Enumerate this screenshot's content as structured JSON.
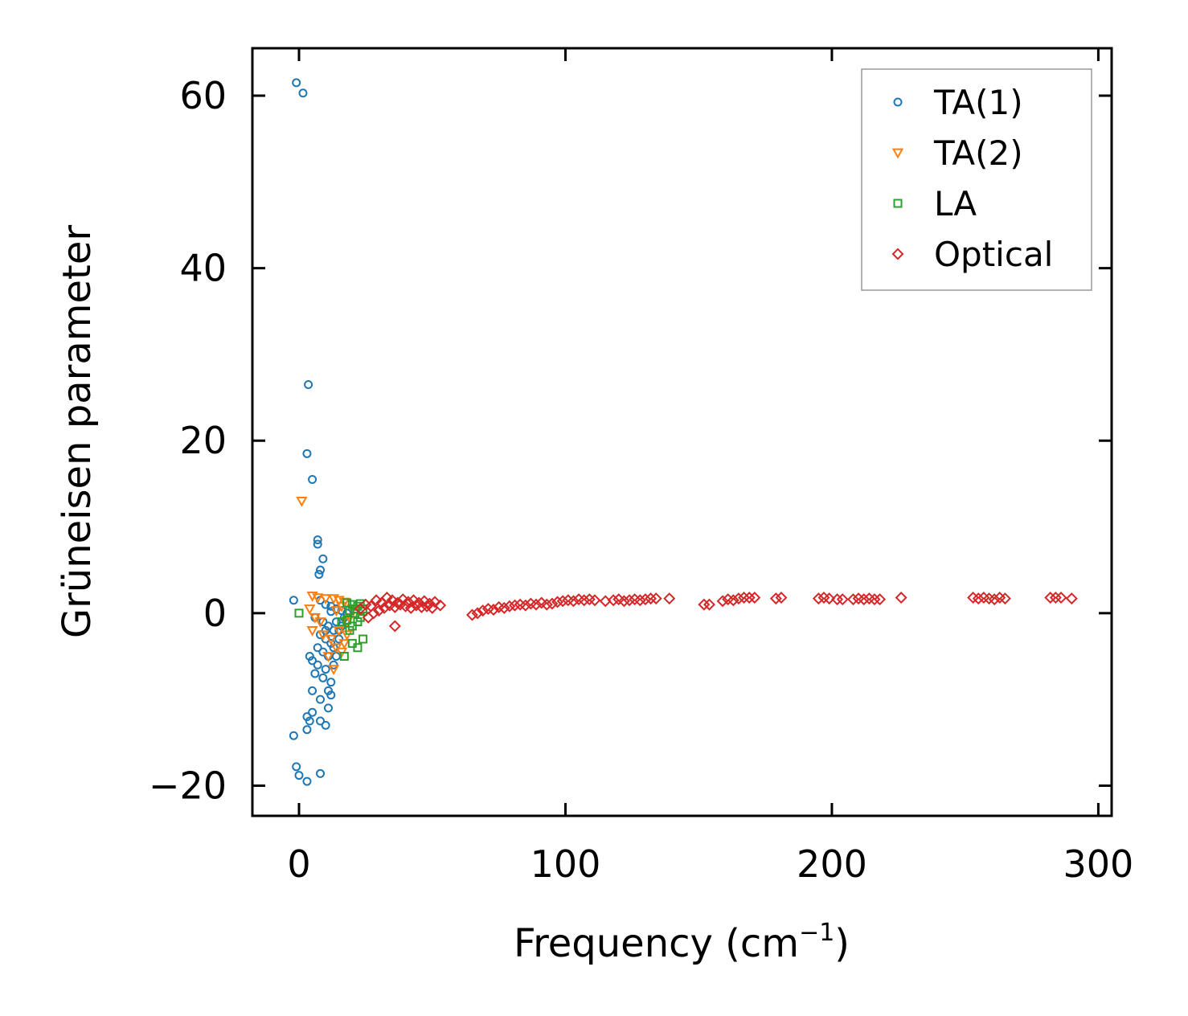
{
  "chart_data": {
    "type": "scatter",
    "title": "",
    "xlabel": "Frequency (cm",
    "xlabel_superscript": "−1",
    "xlabel_suffix": ")",
    "ylabel": "Grüneisen parameter",
    "xlim": [
      -17.5,
      305
    ],
    "ylim": [
      -23.5,
      65.5
    ],
    "xticks": [
      0,
      100,
      200,
      300
    ],
    "yticks": [
      -20,
      0,
      20,
      40,
      60
    ],
    "xtick_labels": [
      "0",
      "100",
      "200",
      "300"
    ],
    "ytick_labels": [
      "−20",
      "0",
      "20",
      "40",
      "60"
    ],
    "legend_position": "top-right",
    "grid": false,
    "series": [
      {
        "name": "TA(1)",
        "marker": "circle",
        "color": "#1f77b4",
        "points": [
          [
            -1,
            61.5
          ],
          [
            1.5,
            60.3
          ],
          [
            3.5,
            26.5
          ],
          [
            3,
            18.5
          ],
          [
            5,
            15.5
          ],
          [
            7,
            8.5
          ],
          [
            7,
            8
          ],
          [
            9,
            6.3
          ],
          [
            8,
            5
          ],
          [
            7.5,
            4.5
          ],
          [
            -2,
            1.5
          ],
          [
            8,
            1.5
          ],
          [
            10,
            1
          ],
          [
            12,
            0.8
          ],
          [
            14,
            0.5
          ],
          [
            16,
            0.3
          ],
          [
            18,
            0
          ],
          [
            6,
            -0.5
          ],
          [
            9,
            -1
          ],
          [
            11,
            -1.5
          ],
          [
            13,
            -2
          ],
          [
            8,
            -2.5
          ],
          [
            10,
            -3
          ],
          [
            12,
            -3.5
          ],
          [
            15,
            -3
          ],
          [
            7,
            -4
          ],
          [
            9,
            -4.5
          ],
          [
            11,
            -5
          ],
          [
            4,
            -5
          ],
          [
            5,
            -5.5
          ],
          [
            7,
            -6
          ],
          [
            10,
            -6.5
          ],
          [
            6,
            -7
          ],
          [
            9,
            -7.5
          ],
          [
            12,
            -8
          ],
          [
            5,
            -9
          ],
          [
            11,
            -9
          ],
          [
            12,
            -9.5
          ],
          [
            8,
            -10
          ],
          [
            11,
            -11
          ],
          [
            5,
            -11.5
          ],
          [
            3,
            -12
          ],
          [
            4,
            -12.5
          ],
          [
            8,
            -12.5
          ],
          [
            10,
            -13
          ],
          [
            3,
            -13.5
          ],
          [
            -2,
            -14.2
          ],
          [
            -1,
            -17.8
          ],
          [
            0,
            -18.8
          ],
          [
            8,
            -18.6
          ],
          [
            3,
            -19.5
          ],
          [
            14,
            -1
          ],
          [
            15,
            -2
          ],
          [
            13,
            -4
          ],
          [
            16,
            -1.5
          ],
          [
            17,
            -0.5
          ],
          [
            12,
            0.2
          ],
          [
            10,
            -2
          ],
          [
            14,
            -5
          ],
          [
            13,
            -6
          ]
        ]
      },
      {
        "name": "TA(2)",
        "marker": "triangle-down",
        "color": "#ff7f0e",
        "points": [
          [
            1,
            13
          ],
          [
            5,
            2
          ],
          [
            7,
            1.8
          ],
          [
            10,
            1.7
          ],
          [
            13,
            1.7
          ],
          [
            15,
            1.5
          ],
          [
            17,
            1.3
          ],
          [
            4,
            0.5
          ],
          [
            6,
            -0.5
          ],
          [
            8,
            -1
          ],
          [
            5,
            -2
          ],
          [
            9,
            -2.5
          ],
          [
            12,
            -3
          ],
          [
            14,
            -4
          ],
          [
            16,
            -4.5
          ],
          [
            11,
            -5
          ],
          [
            13,
            -6.5
          ],
          [
            15,
            -2
          ],
          [
            18,
            -1
          ],
          [
            20,
            0.5
          ],
          [
            19,
            -0.5
          ],
          [
            18,
            -2.5
          ],
          [
            17,
            -3.5
          ],
          [
            16,
            0.8
          ],
          [
            14,
            0.3
          ]
        ]
      },
      {
        "name": "LA",
        "marker": "square",
        "color": "#2ca02c",
        "points": [
          [
            0,
            0
          ],
          [
            18,
            1.2
          ],
          [
            20,
            1
          ],
          [
            22,
            0.8
          ],
          [
            24,
            0.5
          ],
          [
            21,
            0
          ],
          [
            23,
            -0.5
          ],
          [
            22,
            -1
          ],
          [
            24,
            -3
          ],
          [
            22,
            -4
          ],
          [
            17,
            -5
          ],
          [
            19,
            -2
          ],
          [
            20,
            -1.5
          ],
          [
            21,
            0.5
          ],
          [
            23,
            1.1
          ],
          [
            19,
            0.3
          ],
          [
            18,
            -0.8
          ],
          [
            24,
            0.2
          ],
          [
            20,
            -3.5
          ],
          [
            16,
            -1
          ]
        ]
      },
      {
        "name": "Optical",
        "marker": "diamond",
        "color": "#d62728",
        "points": [
          [
            23,
            0.5
          ],
          [
            25,
            1
          ],
          [
            27,
            0.8
          ],
          [
            29,
            1.5
          ],
          [
            31,
            1.2
          ],
          [
            33,
            1.8
          ],
          [
            35,
            1.5
          ],
          [
            37,
            1.2
          ],
          [
            39,
            1.6
          ],
          [
            41,
            1.3
          ],
          [
            43,
            1.5
          ],
          [
            45,
            1.2
          ],
          [
            47,
            1.4
          ],
          [
            49,
            1.1
          ],
          [
            51,
            1.3
          ],
          [
            53,
            0.9
          ],
          [
            26,
            -0.5
          ],
          [
            28,
            0
          ],
          [
            30,
            0.3
          ],
          [
            32,
            0.6
          ],
          [
            34,
            0.9
          ],
          [
            36,
            0.7
          ],
          [
            38,
            1
          ],
          [
            36,
            -1.5
          ],
          [
            40,
            0.8
          ],
          [
            42,
            0.6
          ],
          [
            44,
            0.9
          ],
          [
            46,
            0.7
          ],
          [
            48,
            0.8
          ],
          [
            50,
            0.6
          ],
          [
            65,
            -0.2
          ],
          [
            67,
            0
          ],
          [
            69,
            0.3
          ],
          [
            71,
            0.5
          ],
          [
            73,
            0.4
          ],
          [
            75,
            0.7
          ],
          [
            77,
            0.6
          ],
          [
            79,
            0.8
          ],
          [
            81,
            0.9
          ],
          [
            83,
            1
          ],
          [
            85,
            0.9
          ],
          [
            87,
            1.1
          ],
          [
            89,
            1
          ],
          [
            91,
            1.2
          ],
          [
            93,
            1
          ],
          [
            95,
            1.1
          ],
          [
            97,
            1.3
          ],
          [
            99,
            1.4
          ],
          [
            101,
            1.5
          ],
          [
            103,
            1.4
          ],
          [
            105,
            1.6
          ],
          [
            107,
            1.5
          ],
          [
            109,
            1.6
          ],
          [
            111,
            1.5
          ],
          [
            115,
            1.4
          ],
          [
            118,
            1.5
          ],
          [
            120,
            1.6
          ],
          [
            122,
            1.4
          ],
          [
            124,
            1.5
          ],
          [
            126,
            1.6
          ],
          [
            128,
            1.5
          ],
          [
            130,
            1.6
          ],
          [
            132,
            1.7
          ],
          [
            134,
            1.7
          ],
          [
            139,
            1.7
          ],
          [
            152,
            1
          ],
          [
            154,
            1
          ],
          [
            159,
            1.4
          ],
          [
            161,
            1.6
          ],
          [
            163,
            1.5
          ],
          [
            165,
            1.7
          ],
          [
            167,
            1.8
          ],
          [
            169,
            1.8
          ],
          [
            171,
            1.8
          ],
          [
            179,
            1.7
          ],
          [
            181,
            1.8
          ],
          [
            195,
            1.7
          ],
          [
            197,
            1.8
          ],
          [
            199,
            1.7
          ],
          [
            202,
            1.6
          ],
          [
            204,
            1.6
          ],
          [
            208,
            1.6
          ],
          [
            210,
            1.7
          ],
          [
            212,
            1.6
          ],
          [
            214,
            1.7
          ],
          [
            216,
            1.6
          ],
          [
            218,
            1.6
          ],
          [
            226,
            1.8
          ],
          [
            253,
            1.8
          ],
          [
            255,
            1.7
          ],
          [
            257,
            1.8
          ],
          [
            259,
            1.7
          ],
          [
            261,
            1.6
          ],
          [
            263,
            1.8
          ],
          [
            265,
            1.7
          ],
          [
            282,
            1.8
          ],
          [
            284,
            1.8
          ],
          [
            286,
            1.8
          ],
          [
            290,
            1.7
          ]
        ]
      }
    ]
  }
}
